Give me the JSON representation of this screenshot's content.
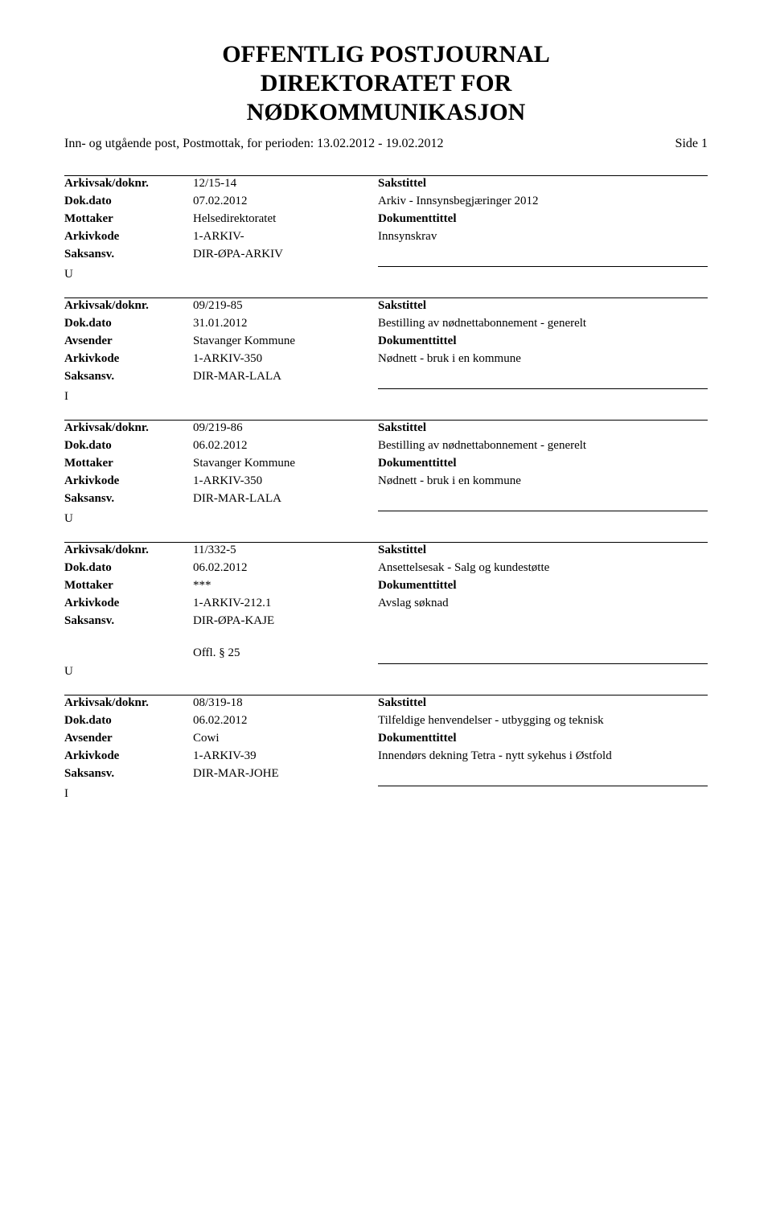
{
  "header": {
    "title_line1": "OFFENTLIG POSTJOURNAL",
    "title_line2": "DIREKTORATET FOR",
    "title_line3": "NØDKOMMUNIKASJON",
    "subtitle": "Inn- og utgående post, Postmottak, for perioden: 13.02.2012 - 19.02.2012",
    "side_label": "Side 1"
  },
  "labels": {
    "arkivsak": "Arkivsak/doknr.",
    "dokdato": "Dok.dato",
    "mottaker": "Mottaker",
    "avsender": "Avsender",
    "arkivkode": "Arkivkode",
    "saksansv": "Saksansv.",
    "sakstittel": "Sakstittel",
    "dokumenttittel": "Dokumenttittel"
  },
  "entries": [
    {
      "arkivsak": "12/15-14",
      "dokdato": "07.02.2012",
      "party_label": "Mottaker",
      "party_value": "Helsedirektoratet",
      "arkivkode": "1-ARKIV-",
      "saksansv": "DIR-ØPA-ARKIV",
      "sakstittel": "Arkiv - Innsynsbegjæringer 2012",
      "dokumenttittel": "Innsynskrav",
      "io": "U",
      "offl": ""
    },
    {
      "arkivsak": "09/219-85",
      "dokdato": "31.01.2012",
      "party_label": "Avsender",
      "party_value": "Stavanger Kommune",
      "arkivkode": "1-ARKIV-350",
      "saksansv": "DIR-MAR-LALA",
      "sakstittel": "Bestilling av nødnettabonnement - generelt",
      "dokumenttittel": "Nødnett - bruk i en kommune",
      "io": "I",
      "offl": ""
    },
    {
      "arkivsak": "09/219-86",
      "dokdato": "06.02.2012",
      "party_label": "Mottaker",
      "party_value": "Stavanger Kommune",
      "arkivkode": "1-ARKIV-350",
      "saksansv": "DIR-MAR-LALA",
      "sakstittel": "Bestilling av nødnettabonnement - generelt",
      "dokumenttittel": "Nødnett - bruk i en kommune",
      "io": "U",
      "offl": ""
    },
    {
      "arkivsak": "11/332-5",
      "dokdato": "06.02.2012",
      "party_label": "Mottaker",
      "party_value": "***",
      "arkivkode": "1-ARKIV-212.1",
      "saksansv": "DIR-ØPA-KAJE",
      "sakstittel": "Ansettelsesak  - Salg og kundestøtte",
      "dokumenttittel": "Avslag søknad",
      "io": "U",
      "offl": "Offl. § 25"
    },
    {
      "arkivsak": "08/319-18",
      "dokdato": "06.02.2012",
      "party_label": "Avsender",
      "party_value": "Cowi",
      "arkivkode": "1-ARKIV-39",
      "saksansv": "DIR-MAR-JOHE",
      "sakstittel": "Tilfeldige henvendelser - utbygging og teknisk",
      "dokumenttittel": "Innendørs dekning Tetra - nytt sykehus i Østfold",
      "io": "I",
      "offl": ""
    }
  ]
}
